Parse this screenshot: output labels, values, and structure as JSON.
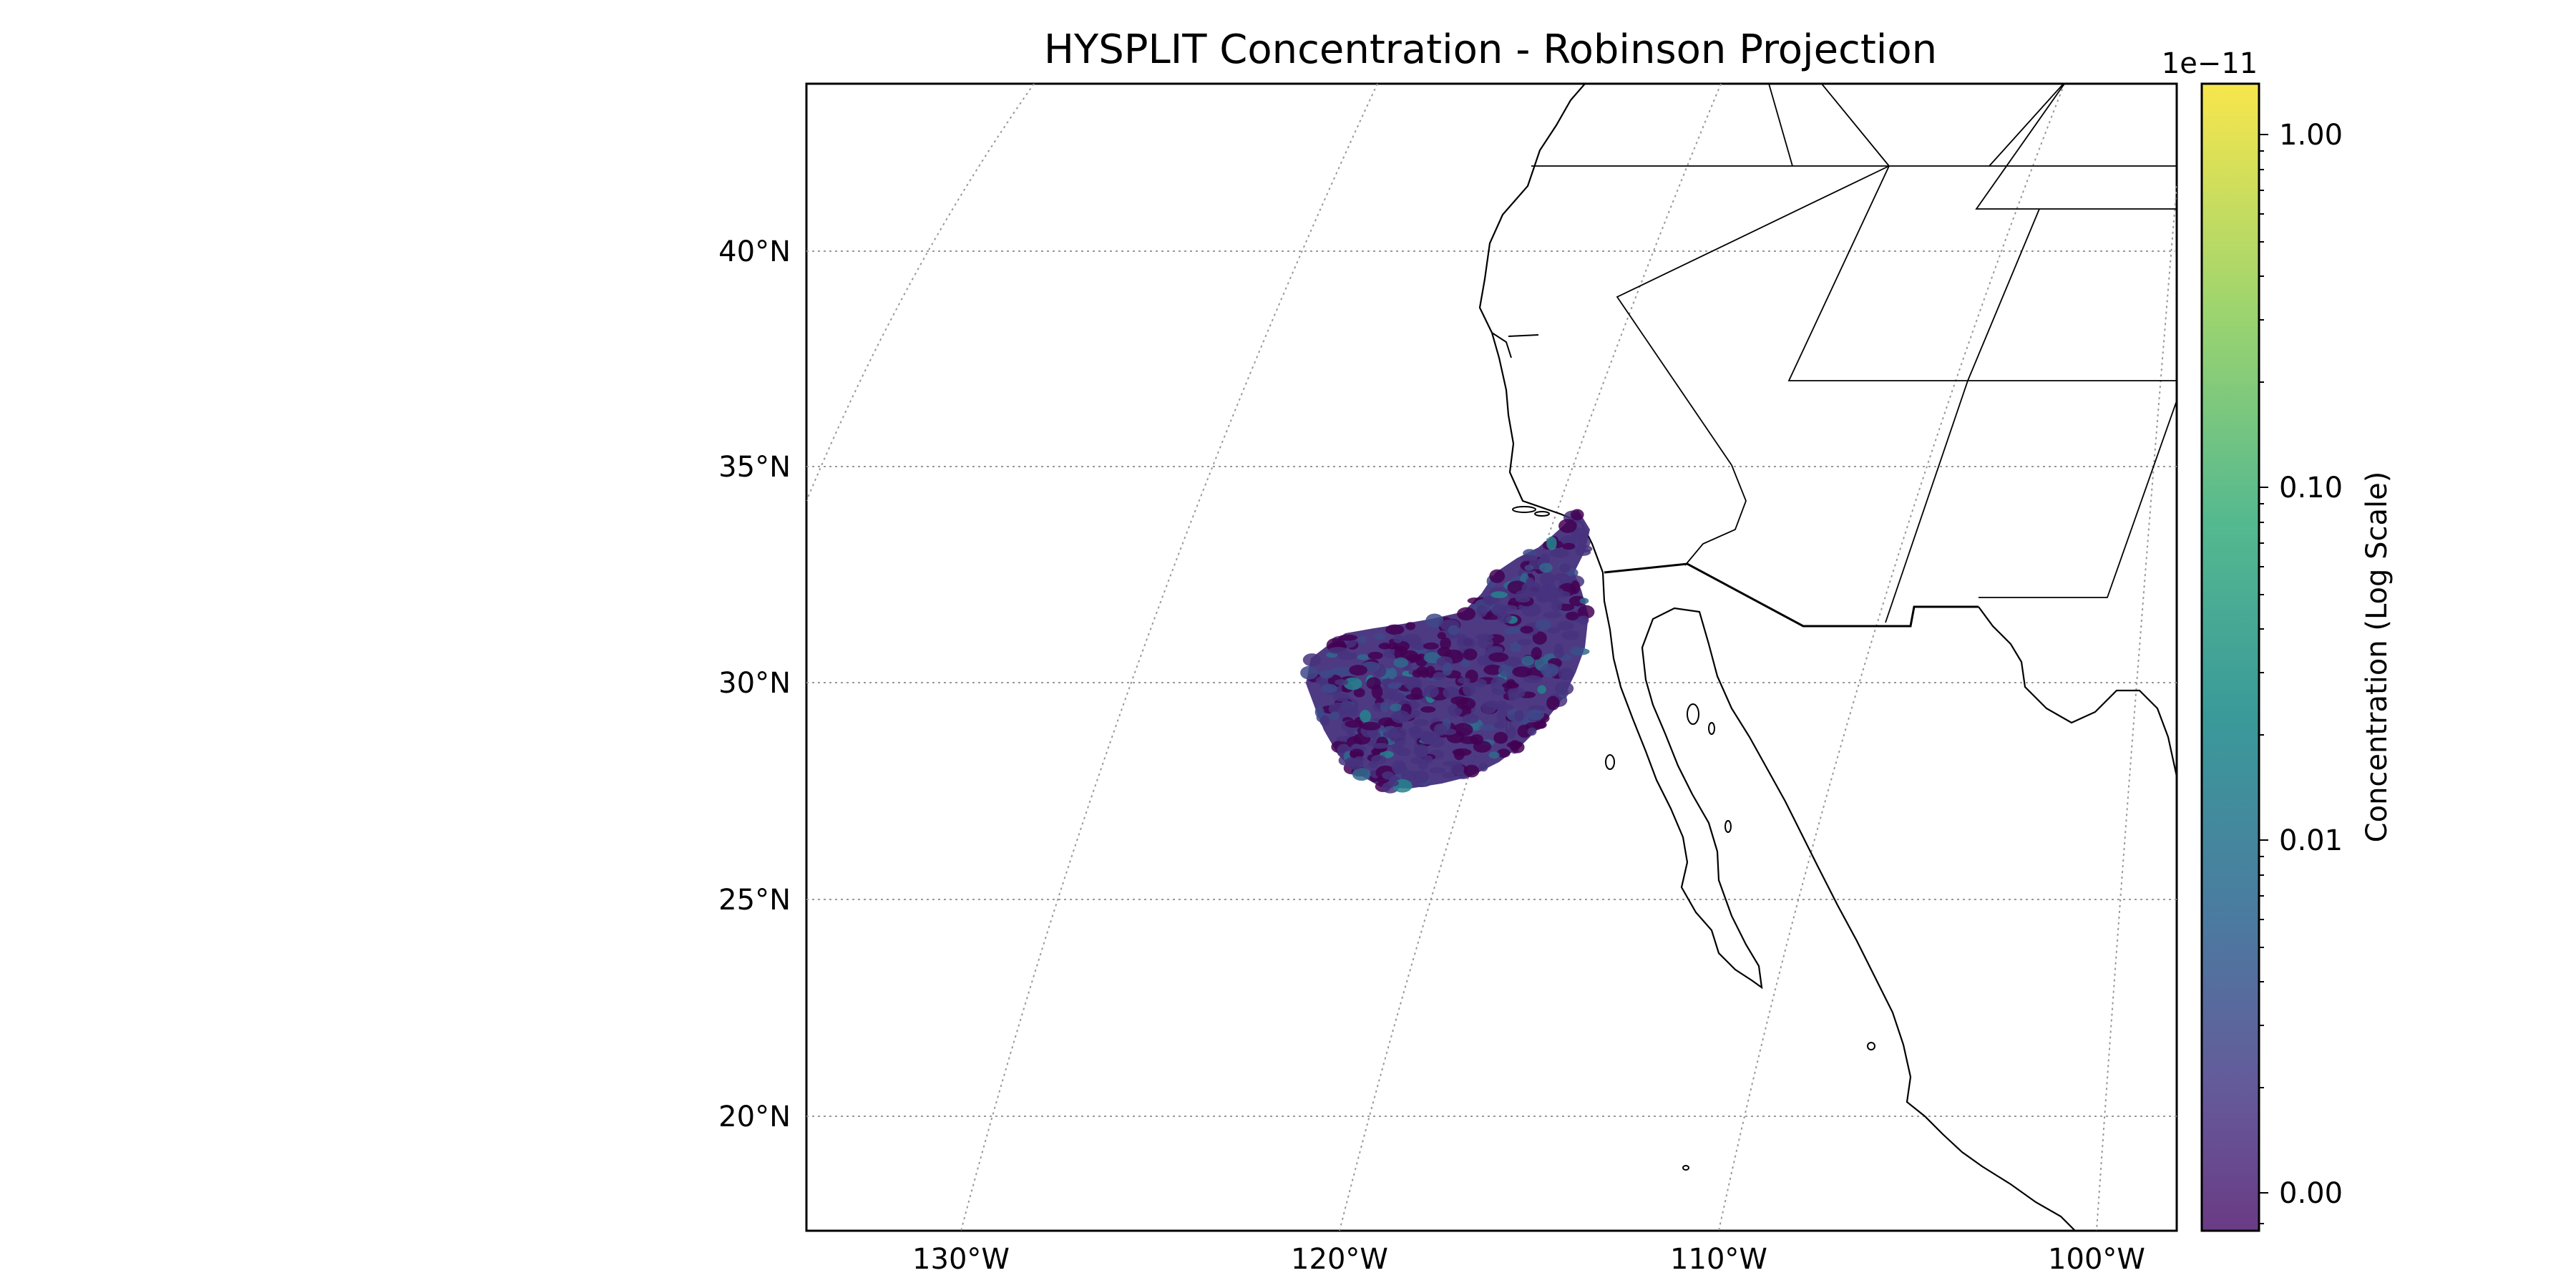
{
  "title": "HYSPLIT Concentration - Robinson Projection",
  "map": {
    "lat_labels": [
      "40°N",
      "35°N",
      "30°N",
      "25°N",
      "20°N"
    ],
    "lon_labels": [
      "130°W",
      "120°W",
      "110°W",
      "100°W"
    ],
    "extent": {
      "lon": [
        -134,
        -98
      ],
      "lat": [
        17.3,
        44.1
      ]
    },
    "gridlines": "dotted",
    "features": [
      "coastlines",
      "country-borders",
      "state-borders"
    ]
  },
  "colorbar": {
    "label": "Concentration (Log Scale)",
    "offset_text": "1e−11",
    "ticks": [
      "1.00",
      "0.10",
      "0.01",
      "0.00"
    ],
    "colormap": "viridis",
    "scale": "log"
  },
  "plume": {
    "description_color": "#472d7b",
    "colors": [
      "#46327e",
      "#3e4989",
      "#31688e",
      "#26828e",
      "#440154"
    ]
  }
}
